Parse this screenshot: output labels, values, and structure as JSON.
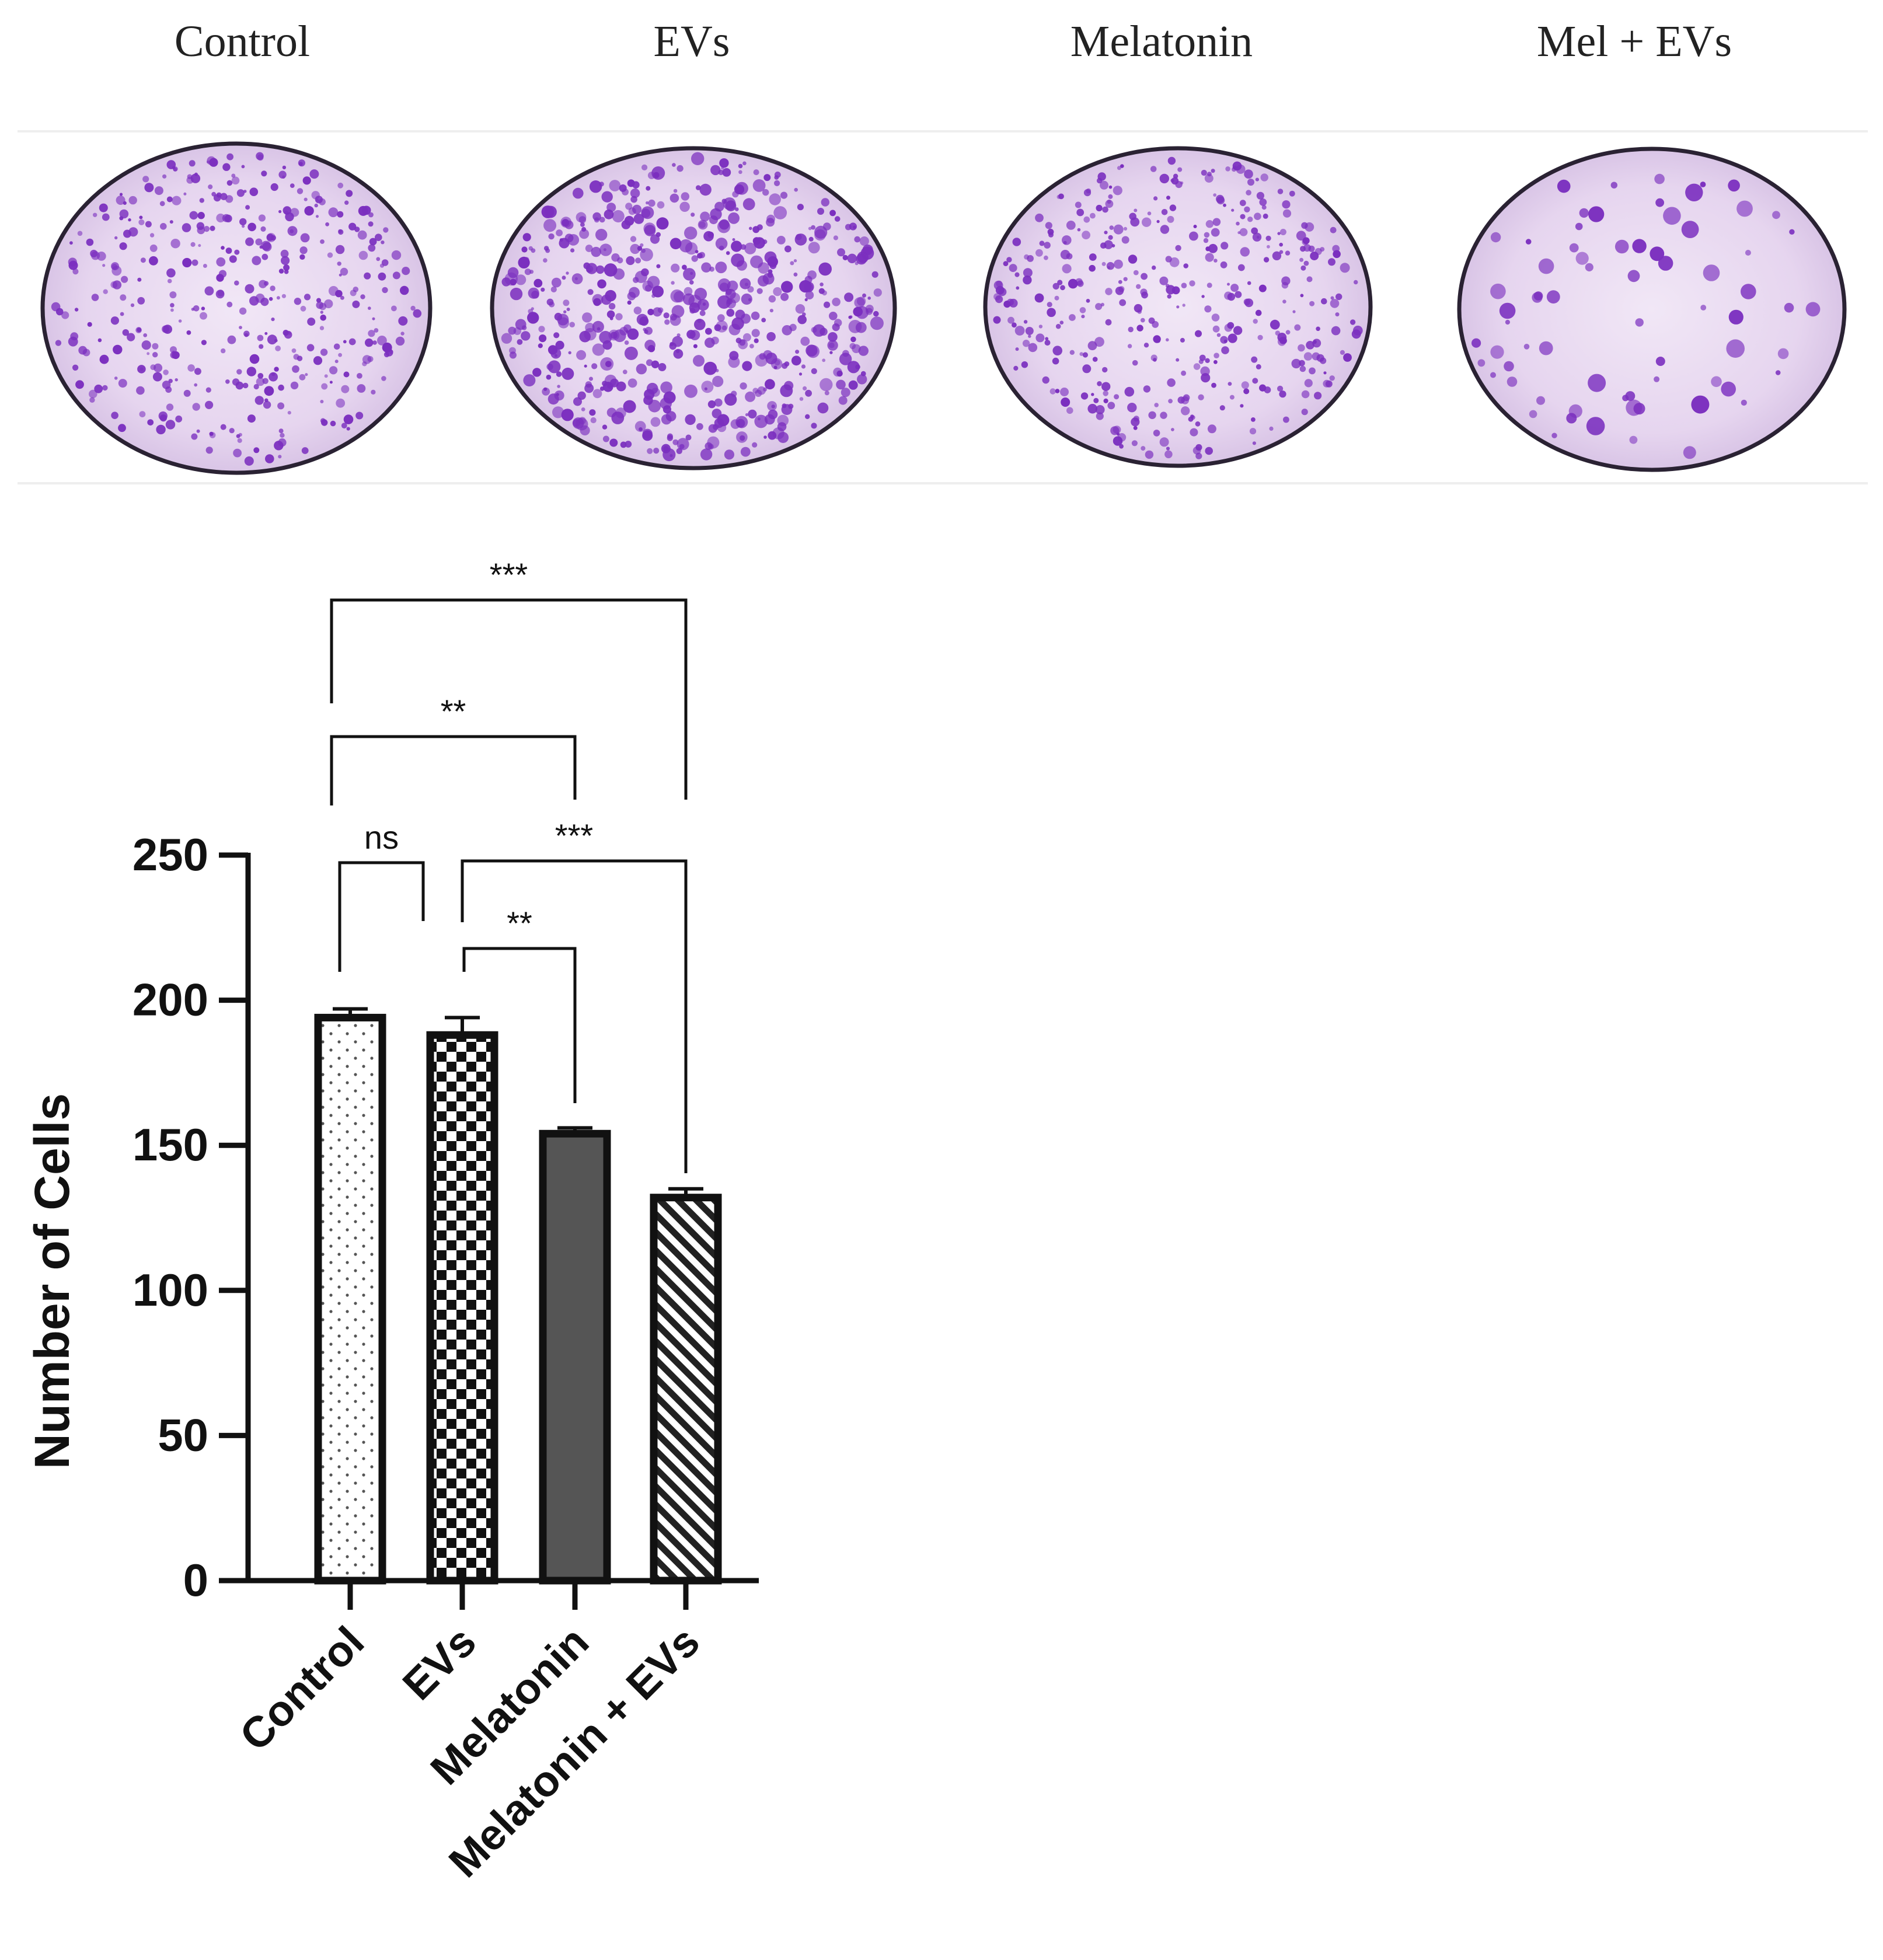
{
  "plates": {
    "labels": [
      "Control",
      "EVs",
      "Melatonin",
      "Mel + EVs"
    ],
    "colony_density": [
      "high",
      "very high",
      "high",
      "low"
    ],
    "stain_color": "#7b2fbf",
    "dish_rim_color": "#2a2233"
  },
  "chart_data": {
    "type": "bar",
    "categories": [
      "Control",
      "EVs",
      "Melatonin",
      "Melatonin + EVs"
    ],
    "values": [
      194,
      188,
      154,
      132
    ],
    "errors": [
      3,
      6,
      2,
      3
    ],
    "patterns": [
      "dots",
      "checker",
      "solid-gray",
      "diagonal-hatch"
    ],
    "ylabel": "Number of Cells",
    "xlabel": "",
    "ylim": [
      0,
      250
    ],
    "yticks": [
      0,
      50,
      100,
      150,
      200,
      250
    ],
    "grid": false,
    "comparisons": [
      {
        "from": 0,
        "to": 3,
        "label": "***"
      },
      {
        "from": 0,
        "to": 2,
        "label": "**"
      },
      {
        "from": 0,
        "to": 1,
        "label": "ns"
      },
      {
        "from": 1,
        "to": 3,
        "label": "***"
      },
      {
        "from": 1,
        "to": 2,
        "label": "**"
      }
    ],
    "bar_fill_gray": "#555555"
  }
}
